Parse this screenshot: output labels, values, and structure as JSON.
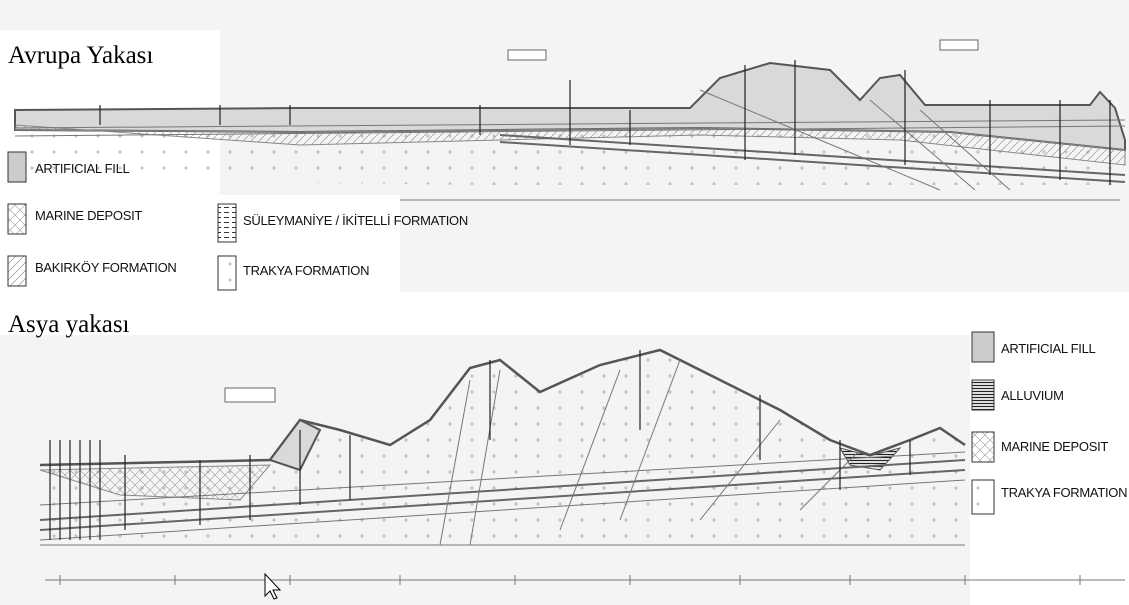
{
  "sections": [
    {
      "title": "Avrupa Yakası",
      "legend": [
        "ARTIFICIAL FILL",
        "MARINE DEPOSIT",
        "BAKIRKÖY FORMATION",
        "SÜLEYMANİYE / İKİTELLİ FORMATION",
        "TRAKYA FORMATION"
      ]
    },
    {
      "title": "Asya yakası",
      "legend": [
        "ARTIFICIAL FILL",
        "ALLUVIUM",
        "MARINE DEPOSIT",
        "TRAKYA FORMATION"
      ]
    }
  ]
}
